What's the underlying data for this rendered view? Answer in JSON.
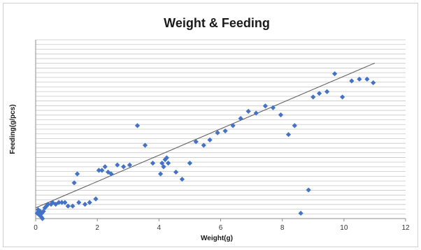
{
  "chart_data": {
    "type": "scatter",
    "title": "Weight & Feeding",
    "xlabel": "Weight(g)",
    "ylabel": "Feeding(g/pcs)",
    "xlim": [
      0,
      12
    ],
    "ylim": [
      0,
      100
    ],
    "x_ticks": [
      0,
      2,
      4,
      6,
      8,
      10,
      12
    ],
    "y_gridlines": true,
    "y_tick_labels_shown": false,
    "marker_color": "#4472C4",
    "trendline_color": "#595959",
    "trendline": {
      "type": "linear",
      "from": [
        0,
        6
      ],
      "to": [
        11,
        87
      ]
    },
    "series": [
      {
        "points": [
          [
            0.05,
            3
          ],
          [
            0.08,
            5
          ],
          [
            0.1,
            4
          ],
          [
            0.12,
            2
          ],
          [
            0.15,
            4
          ],
          [
            0.18,
            1
          ],
          [
            0.2,
            3
          ],
          [
            0.22,
            0
          ],
          [
            0.25,
            4
          ],
          [
            0.3,
            6
          ],
          [
            0.35,
            7
          ],
          [
            0.4,
            8
          ],
          [
            0.5,
            8
          ],
          [
            0.55,
            9
          ],
          [
            0.65,
            8
          ],
          [
            0.75,
            9
          ],
          [
            0.85,
            9
          ],
          [
            0.95,
            9
          ],
          [
            1.05,
            7
          ],
          [
            1.2,
            7
          ],
          [
            1.25,
            20
          ],
          [
            1.35,
            25
          ],
          [
            1.4,
            9
          ],
          [
            1.6,
            8
          ],
          [
            1.75,
            9
          ],
          [
            1.95,
            11
          ],
          [
            2.05,
            27
          ],
          [
            2.15,
            27
          ],
          [
            2.25,
            29
          ],
          [
            2.35,
            26
          ],
          [
            2.45,
            25
          ],
          [
            2.65,
            30
          ],
          [
            2.85,
            29
          ],
          [
            3.05,
            30
          ],
          [
            3.3,
            52
          ],
          [
            3.55,
            41
          ],
          [
            3.8,
            31
          ],
          [
            4.05,
            25
          ],
          [
            4.1,
            31
          ],
          [
            4.15,
            29
          ],
          [
            4.2,
            33
          ],
          [
            4.25,
            34
          ],
          [
            4.3,
            31
          ],
          [
            4.55,
            26
          ],
          [
            4.75,
            22
          ],
          [
            5.0,
            31
          ],
          [
            5.2,
            43
          ],
          [
            5.45,
            41
          ],
          [
            5.65,
            44
          ],
          [
            5.9,
            48
          ],
          [
            6.15,
            49
          ],
          [
            6.4,
            52
          ],
          [
            6.65,
            56
          ],
          [
            6.9,
            60
          ],
          [
            7.15,
            59
          ],
          [
            7.45,
            63
          ],
          [
            7.7,
            62
          ],
          [
            7.95,
            58
          ],
          [
            8.2,
            47
          ],
          [
            8.4,
            52
          ],
          [
            8.6,
            3
          ],
          [
            8.85,
            16
          ],
          [
            9.0,
            68
          ],
          [
            9.2,
            70
          ],
          [
            9.45,
            71
          ],
          [
            9.7,
            81
          ],
          [
            9.95,
            68
          ],
          [
            10.25,
            77
          ],
          [
            10.5,
            78
          ],
          [
            10.75,
            78
          ],
          [
            10.95,
            76
          ]
        ]
      }
    ]
  }
}
